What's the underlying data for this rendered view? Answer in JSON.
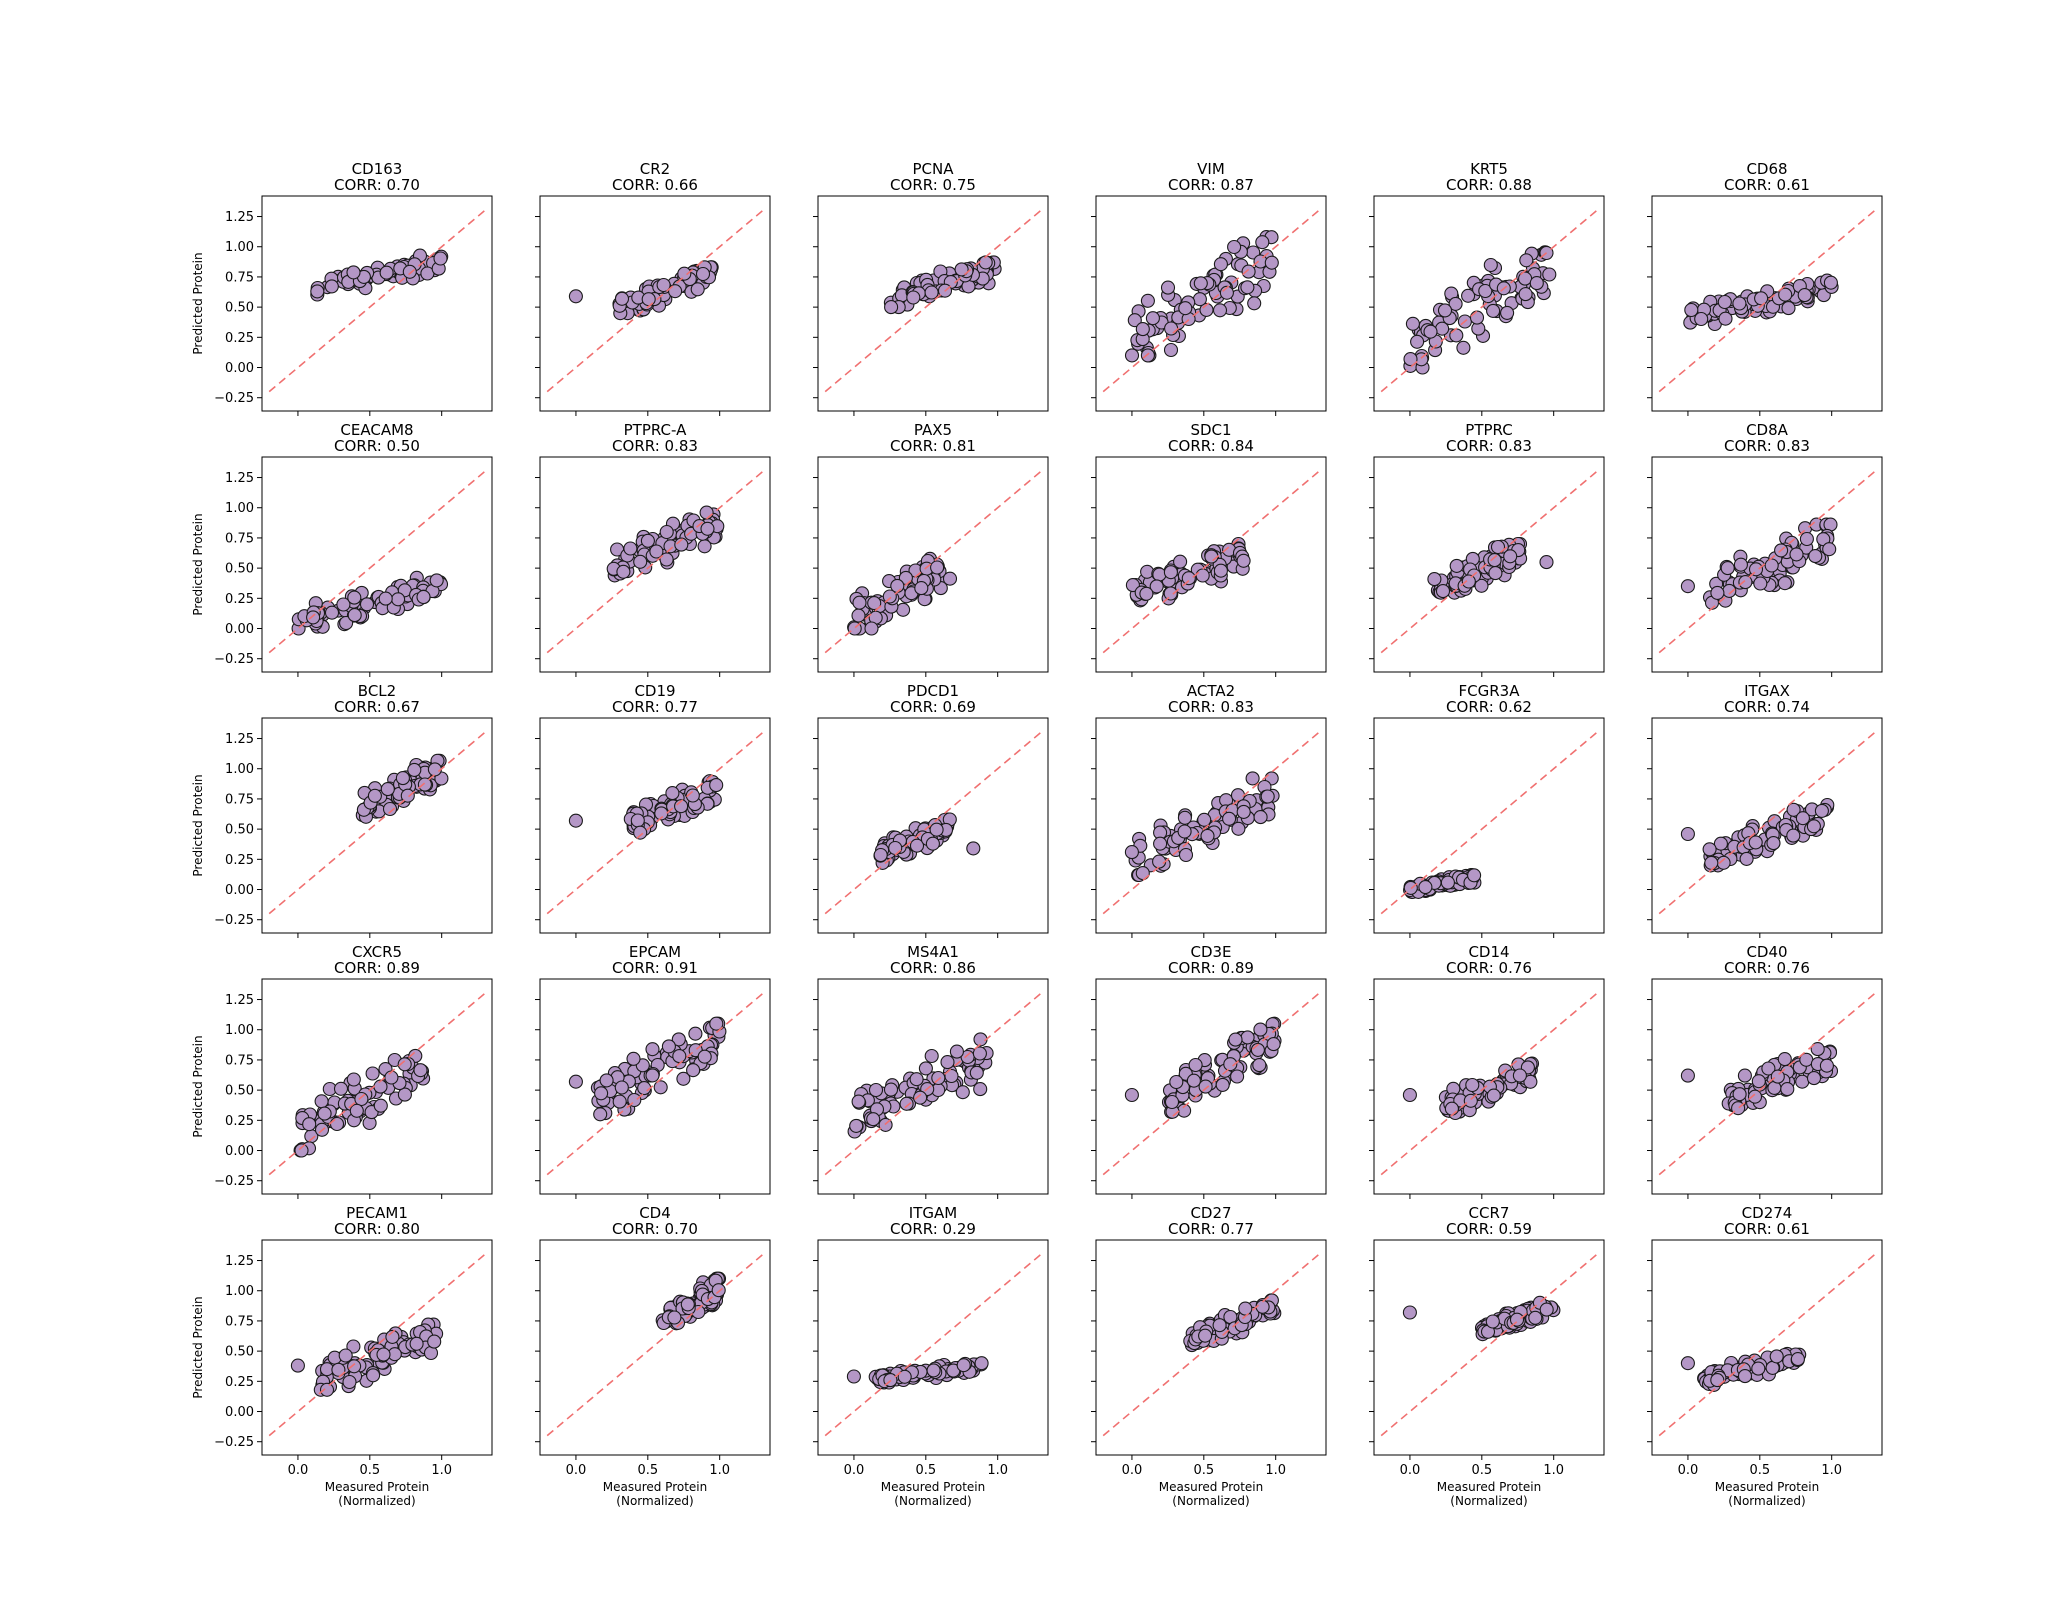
{
  "chart_data": {
    "type": "scatter",
    "layout": "grid 5 rows x 6 columns, shared axes",
    "xlabel": "Measured Protein",
    "xlabel_sub": "(Normalized)",
    "ylabel": "Predicted Protein",
    "xlim": [
      -0.25,
      1.35
    ],
    "ylim": [
      -0.36,
      1.42
    ],
    "xticks": [
      0.0,
      0.5,
      1.0
    ],
    "xtick_labels": [
      "0.0",
      "0.5",
      "1.0"
    ],
    "yticks": [
      -0.25,
      0.0,
      0.25,
      0.5,
      0.75,
      1.0,
      1.25
    ],
    "ytick_labels": [
      "−0.25",
      "0.00",
      "0.25",
      "0.50",
      "0.75",
      "1.00",
      "1.25"
    ],
    "corr_prefix": "CORR: ",
    "reference_line": {
      "style": "dashed",
      "color": "#f07070",
      "from": [
        -0.2,
        -0.2
      ],
      "to": [
        1.3,
        1.3
      ]
    },
    "point_color": "#b497c6",
    "point_edge": "#1a1a1a",
    "panels": [
      {
        "name": "CD163",
        "corr": "0.70",
        "x": [
          0.13,
          1.0
        ],
        "y": [
          0.6,
          0.93
        ],
        "outliers": []
      },
      {
        "name": "CR2",
        "corr": "0.66",
        "x": [
          0.3,
          0.95
        ],
        "y": [
          0.45,
          0.83
        ],
        "outliers": [
          [
            0.0,
            0.59
          ]
        ]
      },
      {
        "name": "PCNA",
        "corr": "0.75",
        "x": [
          0.25,
          0.98
        ],
        "y": [
          0.5,
          0.87
        ],
        "outliers": []
      },
      {
        "name": "VIM",
        "corr": "0.87",
        "x": [
          0.0,
          1.0
        ],
        "y": [
          0.1,
          1.08
        ],
        "outliers": []
      },
      {
        "name": "KRT5",
        "corr": "0.88",
        "x": [
          0.0,
          1.0
        ],
        "y": [
          0.0,
          1.05
        ],
        "outliers": []
      },
      {
        "name": "CD68",
        "corr": "0.61",
        "x": [
          0.0,
          1.0
        ],
        "y": [
          0.36,
          0.72
        ],
        "outliers": []
      },
      {
        "name": "CEACAM8",
        "corr": "0.50",
        "x": [
          0.0,
          1.0
        ],
        "y": [
          0.0,
          0.42
        ],
        "outliers": []
      },
      {
        "name": "PTPRC-A",
        "corr": "0.83",
        "x": [
          0.25,
          1.0
        ],
        "y": [
          0.44,
          0.96
        ],
        "outliers": []
      },
      {
        "name": "PAX5",
        "corr": "0.81",
        "x": [
          0.0,
          0.67
        ],
        "y": [
          0.0,
          0.6
        ],
        "outliers": []
      },
      {
        "name": "SDC1",
        "corr": "0.84",
        "x": [
          0.0,
          0.78
        ],
        "y": [
          0.18,
          0.7
        ],
        "outliers": []
      },
      {
        "name": "PTPRC",
        "corr": "0.83",
        "x": [
          0.15,
          0.78
        ],
        "y": [
          0.22,
          0.7
        ],
        "outliers": [
          [
            0.95,
            0.55
          ]
        ]
      },
      {
        "name": "CD8A",
        "corr": "0.83",
        "x": [
          0.15,
          1.0
        ],
        "y": [
          0.17,
          0.86
        ],
        "outliers": [
          [
            0.0,
            0.35
          ]
        ]
      },
      {
        "name": "BCL2",
        "corr": "0.67",
        "x": [
          0.45,
          1.0
        ],
        "y": [
          0.6,
          1.08
        ],
        "outliers": []
      },
      {
        "name": "CD19",
        "corr": "0.77",
        "x": [
          0.38,
          1.0
        ],
        "y": [
          0.47,
          0.9
        ],
        "outliers": [
          [
            0.0,
            0.57
          ]
        ]
      },
      {
        "name": "PDCD1",
        "corr": "0.69",
        "x": [
          0.16,
          0.67
        ],
        "y": [
          0.22,
          0.58
        ],
        "outliers": [
          [
            0.83,
            0.34
          ]
        ]
      },
      {
        "name": "ACTA2",
        "corr": "0.83",
        "x": [
          0.0,
          1.0
        ],
        "y": [
          0.12,
          0.92
        ],
        "outliers": [
          [
            0.0,
            0.31
          ]
        ]
      },
      {
        "name": "FCGR3A",
        "corr": "0.62",
        "x": [
          0.0,
          0.45
        ],
        "y": [
          -0.02,
          0.12
        ],
        "outliers": []
      },
      {
        "name": "ITGAX",
        "corr": "0.74",
        "x": [
          0.15,
          0.97
        ],
        "y": [
          0.2,
          0.7
        ],
        "outliers": [
          [
            0.0,
            0.46
          ]
        ]
      },
      {
        "name": "CXCR5",
        "corr": "0.89",
        "x": [
          0.0,
          0.9
        ],
        "y": [
          0.0,
          0.85
        ],
        "outliers": []
      },
      {
        "name": "EPCAM",
        "corr": "0.91",
        "x": [
          0.15,
          1.0
        ],
        "y": [
          0.3,
          1.05
        ],
        "outliers": [
          [
            0.0,
            0.57
          ]
        ]
      },
      {
        "name": "MS4A1",
        "corr": "0.86",
        "x": [
          0.0,
          0.97
        ],
        "y": [
          0.12,
          0.92
        ],
        "outliers": []
      },
      {
        "name": "CD3E",
        "corr": "0.89",
        "x": [
          0.25,
          1.0
        ],
        "y": [
          0.32,
          1.05
        ],
        "outliers": [
          [
            0.0,
            0.46
          ]
        ]
      },
      {
        "name": "CD14",
        "corr": "0.76",
        "x": [
          0.25,
          0.85
        ],
        "y": [
          0.3,
          0.72
        ],
        "outliers": [
          [
            0.0,
            0.46
          ]
        ]
      },
      {
        "name": "CD40",
        "corr": "0.76",
        "x": [
          0.28,
          1.0
        ],
        "y": [
          0.35,
          0.84
        ],
        "outliers": [
          [
            0.0,
            0.62
          ]
        ]
      },
      {
        "name": "PECAM1",
        "corr": "0.80",
        "x": [
          0.15,
          0.97
        ],
        "y": [
          0.18,
          0.72
        ],
        "outliers": [
          [
            0.0,
            0.38
          ]
        ]
      },
      {
        "name": "CD4",
        "corr": "0.70",
        "x": [
          0.6,
          1.0
        ],
        "y": [
          0.68,
          1.1
        ],
        "outliers": []
      },
      {
        "name": "ITGAM",
        "corr": "0.29",
        "x": [
          0.13,
          0.9
        ],
        "y": [
          0.24,
          0.4
        ],
        "outliers": [
          [
            0.0,
            0.29
          ]
        ]
      },
      {
        "name": "CD27",
        "corr": "0.77",
        "x": [
          0.4,
          1.0
        ],
        "y": [
          0.55,
          0.92
        ],
        "outliers": []
      },
      {
        "name": "CCR7",
        "corr": "0.59",
        "x": [
          0.5,
          1.0
        ],
        "y": [
          0.64,
          0.9
        ],
        "outliers": [
          [
            0.0,
            0.82
          ]
        ]
      },
      {
        "name": "CD274",
        "corr": "0.61",
        "x": [
          0.1,
          0.78
        ],
        "y": [
          0.22,
          0.5
        ],
        "outliers": [
          [
            0.0,
            0.4
          ]
        ]
      }
    ]
  }
}
